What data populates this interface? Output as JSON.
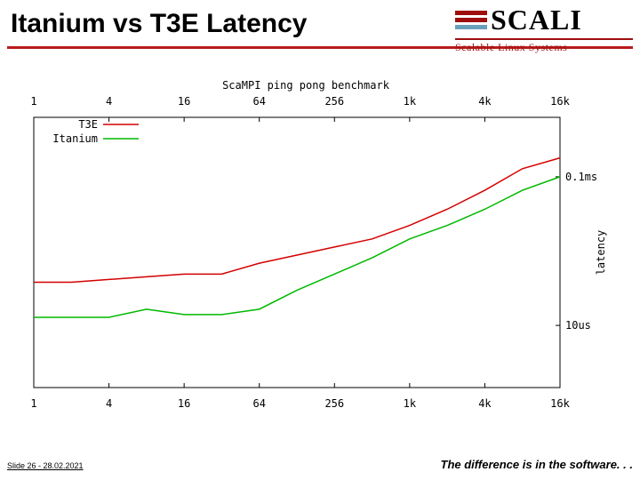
{
  "title": "Itanium vs T3E Latency",
  "logo": {
    "name": "SCALI",
    "tagline": "Scalable Linux Systems"
  },
  "footer": {
    "left": "Slide 26 - 28.02.2021",
    "right": "The difference is in the software. . ."
  },
  "chart": {
    "type": "line",
    "plot_title": "ScaMPI ping pong benchmark",
    "title_fontsize": 12,
    "font_family": "monospace",
    "background_color": "#ffffff",
    "axis_color": "#000000",
    "xlabel": "",
    "ylabel": "latency",
    "ylabel_fontsize": 12,
    "x_ticks": [
      "1",
      "4",
      "16",
      "64",
      "256",
      "1k",
      "4k",
      "16k"
    ],
    "y_top_labels": [
      "0.1ms"
    ],
    "y_bottom_labels": [
      "10us"
    ],
    "legend": {
      "position": "top-left-inside",
      "items": [
        {
          "label": "T3E",
          "color": "#d40000"
        },
        {
          "label": "Itanium",
          "color": "#00b800"
        }
      ]
    },
    "x_domain_log2_steps": 14,
    "y_domain": [
      0,
      1
    ],
    "series": [
      {
        "name": "T3E",
        "color": "#d40000",
        "line_width": 1.5,
        "points": [
          [
            0,
            0.39
          ],
          [
            1,
            0.39
          ],
          [
            2,
            0.4
          ],
          [
            3,
            0.41
          ],
          [
            4,
            0.42
          ],
          [
            5,
            0.42
          ],
          [
            6,
            0.46
          ],
          [
            7,
            0.49
          ],
          [
            8,
            0.52
          ],
          [
            9,
            0.55
          ],
          [
            10,
            0.6
          ],
          [
            11,
            0.66
          ],
          [
            12,
            0.73
          ],
          [
            13,
            0.81
          ],
          [
            14,
            0.85
          ]
        ]
      },
      {
        "name": "Itanium",
        "color": "#00b800",
        "line_width": 1.5,
        "points": [
          [
            0,
            0.26
          ],
          [
            1,
            0.26
          ],
          [
            2,
            0.26
          ],
          [
            3,
            0.29
          ],
          [
            4,
            0.27
          ],
          [
            5,
            0.27
          ],
          [
            6,
            0.29
          ],
          [
            7,
            0.36
          ],
          [
            8,
            0.42
          ],
          [
            9,
            0.48
          ],
          [
            10,
            0.55
          ],
          [
            11,
            0.6
          ],
          [
            12,
            0.66
          ],
          [
            13,
            0.73
          ],
          [
            14,
            0.78
          ]
        ]
      }
    ]
  }
}
